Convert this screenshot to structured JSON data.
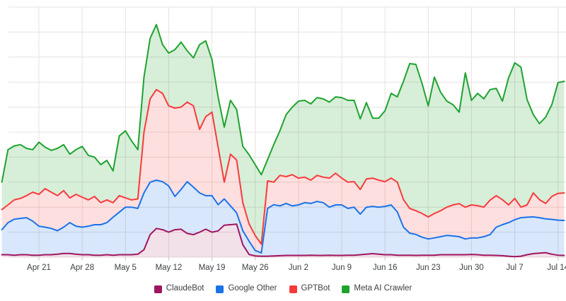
{
  "chart": {
    "background": "#ffffff",
    "grid_color": "#E8E0E0",
    "tick_color": "#C9BFBF",
    "axis_label_color": "#3C4043",
    "legend_text_color": "#3C4043"
  },
  "chart_data": {
    "type": "area",
    "title": "",
    "xlabel": "",
    "ylabel": "",
    "x_unit": "day",
    "y_unit": "relative height in gridline units (no y-axis labels visible)",
    "ylim": [
      0,
      10
    ],
    "y_gridlines": 11,
    "y_axis_labels_visible": false,
    "grid": true,
    "legend_position": "bottom-center",
    "x_tick_labels": [
      "Apr 21",
      "Apr 28",
      "May 5",
      "May 12",
      "May 19",
      "May 26",
      "Jun 2",
      "Jun 9",
      "Jun 16",
      "Jun 23",
      "Jun 30",
      "Jul 7",
      "Jul 14"
    ],
    "x_tick_indices": [
      6,
      13,
      20,
      27,
      34,
      41,
      48,
      55,
      62,
      69,
      76,
      83,
      90
    ],
    "series": [
      {
        "name": "ClaudeBot",
        "color": "#A0155F",
        "fill_opacity": 0.13,
        "values": [
          0.1,
          0.1,
          0.08,
          0.1,
          0.1,
          0.08,
          0.08,
          0.1,
          0.1,
          0.12,
          0.15,
          0.15,
          0.12,
          0.1,
          0.1,
          0.08,
          0.08,
          0.1,
          0.08,
          0.1,
          0.1,
          0.1,
          0.12,
          0.3,
          0.9,
          1.15,
          1.1,
          1.0,
          1.1,
          1.12,
          0.95,
          0.9,
          1.0,
          1.12,
          1.0,
          1.05,
          1.28,
          1.3,
          1.32,
          0.5,
          0.11,
          0.05,
          0.04,
          0.04,
          0.05,
          0.06,
          0.07,
          0.07,
          0.07,
          0.07,
          0.08,
          0.07,
          0.07,
          0.08,
          0.07,
          0.07,
          0.08,
          0.08,
          0.1,
          0.12,
          0.14,
          0.12,
          0.1,
          0.1,
          0.08,
          0.08,
          0.08,
          0.07,
          0.08,
          0.08,
          0.08,
          0.1,
          0.1,
          0.1,
          0.1,
          0.1,
          0.11,
          0.1,
          0.08,
          0.08,
          0.07,
          0.06,
          0.04,
          0.02,
          0.04,
          0.1,
          0.14,
          0.16,
          0.18,
          0.12,
          0.08,
          0.07
        ]
      },
      {
        "name": "Google Other",
        "color": "#1A73E8",
        "fill_opacity": 0.17,
        "values": [
          1.1,
          1.38,
          1.52,
          1.55,
          1.58,
          1.44,
          1.24,
          1.2,
          1.15,
          1.06,
          1.2,
          1.38,
          1.24,
          1.2,
          1.24,
          1.3,
          1.3,
          1.38,
          1.6,
          1.8,
          2.0,
          2.0,
          1.95,
          2.57,
          3.0,
          3.08,
          3.02,
          2.85,
          2.43,
          2.71,
          3.02,
          2.8,
          2.57,
          2.46,
          2.46,
          2.1,
          2.33,
          2.05,
          1.77,
          1.06,
          0.64,
          0.27,
          0.17,
          1.95,
          2.1,
          2.05,
          2.15,
          2.05,
          2.09,
          2.18,
          2.15,
          2.23,
          2.18,
          2.0,
          2.09,
          2.09,
          1.95,
          2.0,
          1.72,
          2.0,
          2.03,
          2.0,
          2.03,
          2.09,
          1.81,
          1.2,
          0.96,
          0.91,
          0.8,
          0.73,
          0.77,
          0.82,
          0.87,
          0.85,
          0.82,
          0.73,
          0.77,
          0.77,
          0.82,
          0.9,
          1.2,
          1.3,
          1.38,
          1.5,
          1.58,
          1.6,
          1.61,
          1.58,
          1.53,
          1.51,
          1.48,
          1.47
        ]
      },
      {
        "name": "GPTBot",
        "color": "#F73B3B",
        "fill_opacity": 0.16,
        "values": [
          1.9,
          2.09,
          2.29,
          2.35,
          2.46,
          2.6,
          2.51,
          2.74,
          2.6,
          2.46,
          2.66,
          2.37,
          2.51,
          2.4,
          2.29,
          2.43,
          2.18,
          2.29,
          2.18,
          2.46,
          2.37,
          2.29,
          2.33,
          5.0,
          6.33,
          6.7,
          6.55,
          6.05,
          5.96,
          6.0,
          6.2,
          6.05,
          5.11,
          5.62,
          5.8,
          4.4,
          3.0,
          4.12,
          3.88,
          2.18,
          1.33,
          0.87,
          0.52,
          3.05,
          3.0,
          3.27,
          3.22,
          3.3,
          3.16,
          3.2,
          3.08,
          3.27,
          3.2,
          3.16,
          3.36,
          3.16,
          3.0,
          3.02,
          2.71,
          3.13,
          3.16,
          3.08,
          3.02,
          3.16,
          3.0,
          2.3,
          1.95,
          1.86,
          1.75,
          1.61,
          1.75,
          1.86,
          2.0,
          2.09,
          2.14,
          2.0,
          2.09,
          2.06,
          2.0,
          2.28,
          2.46,
          2.3,
          2.09,
          2.35,
          2.0,
          2.09,
          2.57,
          2.3,
          2.15,
          2.43,
          2.55,
          2.57
        ]
      },
      {
        "name": "Meta AI Crawler",
        "color": "#1FA32F",
        "fill_opacity": 0.18,
        "values": [
          3.0,
          4.3,
          4.45,
          4.5,
          4.35,
          4.3,
          4.6,
          4.4,
          4.27,
          4.35,
          4.5,
          4.12,
          4.3,
          4.43,
          4.07,
          4.0,
          3.7,
          3.87,
          3.45,
          4.85,
          5.05,
          4.65,
          4.3,
          7.2,
          8.75,
          9.3,
          8.5,
          8.16,
          8.3,
          8.6,
          8.25,
          7.97,
          8.5,
          8.65,
          7.9,
          6.4,
          5.2,
          6.27,
          5.9,
          4.43,
          4.1,
          3.7,
          3.3,
          3.9,
          4.5,
          5.06,
          5.7,
          6.0,
          6.24,
          6.27,
          6.13,
          6.38,
          6.33,
          6.2,
          6.41,
          6.38,
          6.27,
          6.27,
          5.53,
          6.18,
          5.56,
          5.56,
          5.85,
          6.55,
          6.41,
          7.03,
          7.74,
          7.71,
          6.95,
          6.05,
          7.2,
          6.6,
          6.24,
          6.1,
          5.8,
          7.37,
          6.27,
          6.55,
          6.33,
          6.7,
          6.75,
          6.24,
          7.17,
          7.77,
          7.6,
          6.3,
          5.7,
          5.34,
          5.6,
          6.1,
          6.98,
          7.03
        ]
      }
    ]
  },
  "legend": {
    "items": [
      {
        "label": "ClaudeBot"
      },
      {
        "label": "Google Other"
      },
      {
        "label": "GPTBot"
      },
      {
        "label": "Meta AI Crawler"
      }
    ]
  }
}
